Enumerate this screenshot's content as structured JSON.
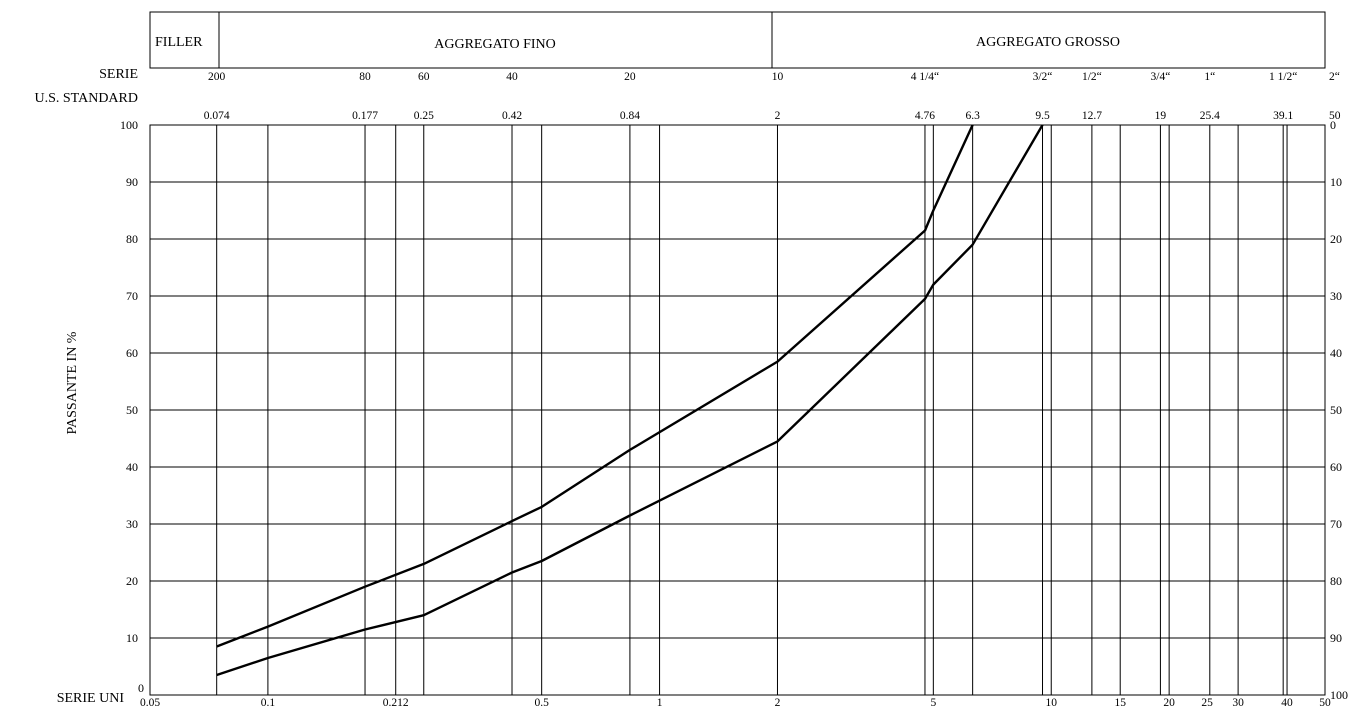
{
  "chart_data": {
    "type": "line",
    "x_scale": "log",
    "xlim": [
      0.05,
      50
    ],
    "ylim": [
      0,
      100
    ],
    "ylabel": "PASSANTE IN %",
    "y2lim": [
      100,
      0
    ],
    "header": {
      "filler": "FILLER",
      "fine": "AGGREGATO FINO",
      "coarse": "AGGREGATO GROSSO"
    },
    "serie_us_label": [
      "SERIE",
      "U.S. STANDARD"
    ],
    "serie_uni_label": "SERIE UNI",
    "us_sieves": [
      {
        "mesh": "200",
        "mm": "0.074",
        "value": 0.074
      },
      {
        "mesh": "80",
        "mm": "0.177",
        "value": 0.177
      },
      {
        "mesh": "60",
        "mm": "0.25",
        "value": 0.25
      },
      {
        "mesh": "40",
        "mm": "0.42",
        "value": 0.42
      },
      {
        "mesh": "20",
        "mm": "0.84",
        "value": 0.84
      },
      {
        "mesh": "10",
        "mm": "2",
        "value": 2
      },
      {
        "mesh": "4 1/4“",
        "mm": "4.76",
        "value": 4.76
      },
      {
        "mesh": "",
        "mm": "6.3",
        "value": 6.3
      },
      {
        "mesh": "3/2“",
        "mm": "9.5",
        "value": 9.5
      },
      {
        "mesh": "1/2“",
        "mm": "12.7",
        "value": 12.7
      },
      {
        "mesh": "3/4“",
        "mm": "19",
        "value": 19
      },
      {
        "mesh": "1“",
        "mm": "25.4",
        "value": 25.4
      },
      {
        "mesh": "1 1/2“",
        "mm": "39.1",
        "value": 39.1
      },
      {
        "mesh": "2“",
        "mm": "50",
        "value": 50
      }
    ],
    "uni_ticks": [
      {
        "label": "0.05",
        "value": 0.05
      },
      {
        "label": "0.1",
        "value": 0.1
      },
      {
        "label": "0.212",
        "value": 0.212
      },
      {
        "label": "0.5",
        "value": 0.5
      },
      {
        "label": "1",
        "value": 1
      },
      {
        "label": "2",
        "value": 2
      },
      {
        "label": "5",
        "value": 5
      },
      {
        "label": "10",
        "value": 10
      },
      {
        "label": "15",
        "value": 15
      },
      {
        "label": "20",
        "value": 20
      },
      {
        "label": "25",
        "value": 25
      },
      {
        "label": "30",
        "value": 30
      },
      {
        "label": "40",
        "value": 40
      },
      {
        "label": "50",
        "value": 50
      }
    ],
    "gridlines_x": [
      0.074,
      0.1,
      0.177,
      0.212,
      0.25,
      0.42,
      0.5,
      0.84,
      1,
      2,
      4.76,
      5,
      6.3,
      9.5,
      10,
      12.7,
      15,
      19,
      20,
      25.4,
      30,
      39.1,
      40
    ],
    "y_ticks": [
      "0",
      "10",
      "20",
      "30",
      "40",
      "50",
      "60",
      "70",
      "80",
      "90",
      "100"
    ],
    "y2_ticks": [
      "100",
      "90",
      "80",
      "70",
      "60",
      "50",
      "40",
      "30",
      "20",
      "10",
      "0"
    ],
    "series": [
      {
        "x": [
          0.074,
          0.1,
          0.177,
          0.25,
          0.42,
          0.5,
          0.84,
          2,
          4.76,
          5,
          6.3
        ],
        "y": [
          8.5,
          12,
          19,
          23,
          30.5,
          33,
          43,
          58.5,
          81.5,
          85,
          100
        ]
      },
      {
        "x": [
          0.074,
          0.1,
          0.177,
          0.25,
          0.42,
          0.5,
          0.84,
          2,
          4.76,
          5,
          6.3,
          9.5
        ],
        "y": [
          3.5,
          6.5,
          11.5,
          14,
          21.5,
          23.5,
          31.5,
          44.5,
          69.5,
          72,
          79,
          100
        ]
      }
    ]
  }
}
